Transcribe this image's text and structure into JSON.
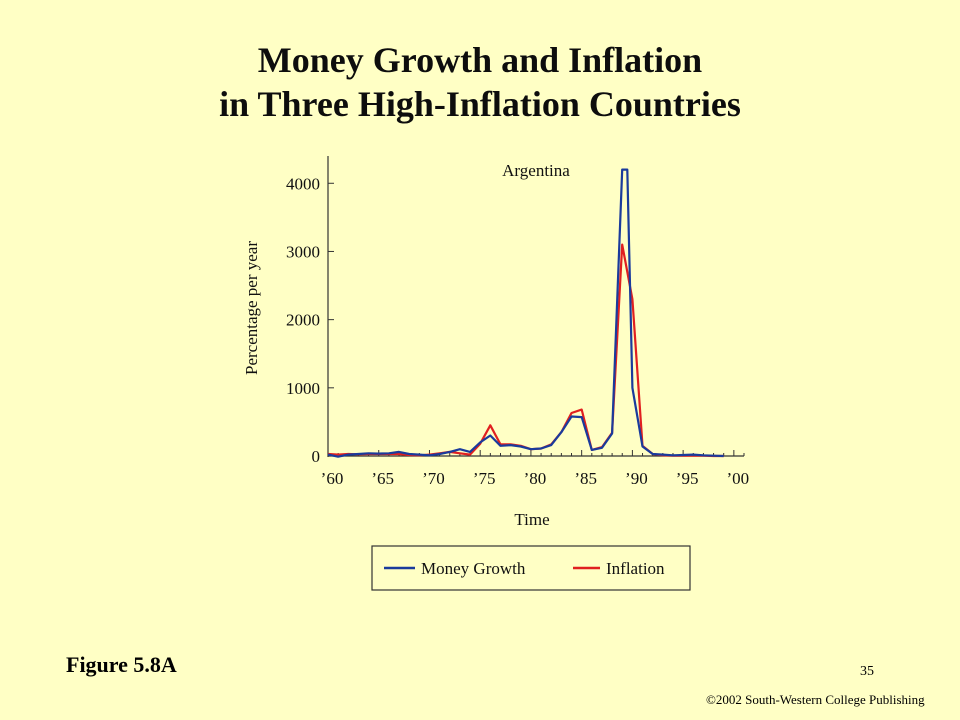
{
  "slide": {
    "title_line1": "Money Growth and Inflation",
    "title_line2": "in Three High-Inflation Countries",
    "figure_label": "Figure 5.8A",
    "page_number": "35",
    "copyright": "©2002 South-Western College Publishing"
  },
  "colors": {
    "background": "#ffffc5",
    "money_growth": "#1a3b9c",
    "inflation": "#e02020"
  },
  "chart_data": {
    "type": "line",
    "title": "Argentina",
    "xlabel": "Time",
    "ylabel": "Percentage per year",
    "xlim": [
      1960,
      2001
    ],
    "ylim": [
      0,
      4400
    ],
    "x_ticks": [
      1960,
      1965,
      1970,
      1975,
      1980,
      1985,
      1990,
      1995,
      2000
    ],
    "x_tick_labels": [
      "’60",
      "’65",
      "’70",
      "’75",
      "’80",
      "’85",
      "’90",
      "’95",
      "’00"
    ],
    "y_ticks": [
      0,
      1000,
      2000,
      3000,
      4000
    ],
    "y_tick_labels": [
      "0",
      "1000",
      "2000",
      "3000",
      "4000"
    ],
    "grid": false,
    "legend_position": "bottom",
    "legend": [
      "Money Growth",
      "Inflation"
    ],
    "series": [
      {
        "name": "Money Growth",
        "color": "#1a3b9c",
        "x": [
          1960,
          1961,
          1962,
          1963,
          1964,
          1965,
          1966,
          1967,
          1968,
          1969,
          1970,
          1971,
          1972,
          1973,
          1974,
          1975,
          1976,
          1977,
          1978,
          1979,
          1980,
          1981,
          1982,
          1983,
          1984,
          1985,
          1986,
          1987,
          1988,
          1989,
          1989.5,
          1990,
          1991,
          1992,
          1993,
          1994,
          1995,
          1996,
          1997,
          1998,
          1999
        ],
        "values": [
          20,
          -10,
          20,
          30,
          40,
          35,
          40,
          60,
          30,
          20,
          10,
          30,
          60,
          100,
          60,
          200,
          300,
          150,
          160,
          140,
          100,
          110,
          160,
          350,
          580,
          570,
          90,
          120,
          330,
          4200,
          4200,
          1000,
          140,
          30,
          20,
          10,
          15,
          20,
          10,
          5,
          0
        ]
      },
      {
        "name": "Inflation",
        "color": "#e02020",
        "x": [
          1960,
          1961,
          1962,
          1963,
          1964,
          1965,
          1966,
          1967,
          1968,
          1969,
          1970,
          1971,
          1972,
          1973,
          1974,
          1975,
          1976,
          1977,
          1978,
          1979,
          1980,
          1981,
          1982,
          1983,
          1984,
          1985,
          1986,
          1987,
          1988,
          1989,
          1990,
          1991,
          1992,
          1993,
          1994,
          1995,
          1996,
          1997,
          1998,
          1999
        ],
        "values": [
          30,
          20,
          30,
          25,
          30,
          30,
          30,
          30,
          15,
          10,
          20,
          40,
          60,
          40,
          20,
          180,
          450,
          170,
          170,
          150,
          100,
          110,
          170,
          350,
          630,
          680,
          90,
          130,
          340,
          3100,
          2300,
          150,
          30,
          10,
          5,
          5,
          5,
          5,
          0,
          0
        ]
      }
    ]
  }
}
